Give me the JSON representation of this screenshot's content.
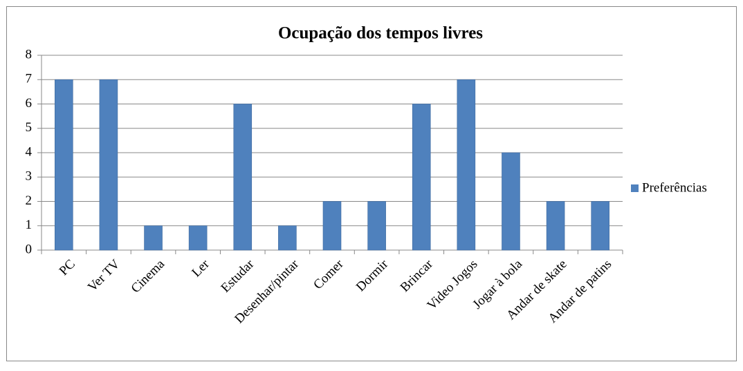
{
  "chart_data": {
    "type": "bar",
    "title": "Ocupação dos tempos livres",
    "categories": [
      "PC",
      "Ver TV",
      "Cinema",
      "Ler",
      "Estudar",
      "Desenhar/pintar",
      "Comer",
      "Dormir",
      "Brincar",
      "Video Jogos",
      "Jogar à bola",
      "Andar de skate",
      "Andar de patins"
    ],
    "series": [
      {
        "name": "Preferências",
        "color": "#4f81bd",
        "values": [
          7,
          7,
          1,
          1,
          6,
          1,
          2,
          2,
          6,
          7,
          4,
          2,
          2
        ]
      }
    ],
    "ylim": [
      0,
      8
    ],
    "yticks": [
      0,
      1,
      2,
      3,
      4,
      5,
      6,
      7,
      8
    ],
    "grid": true,
    "legend": "right"
  }
}
